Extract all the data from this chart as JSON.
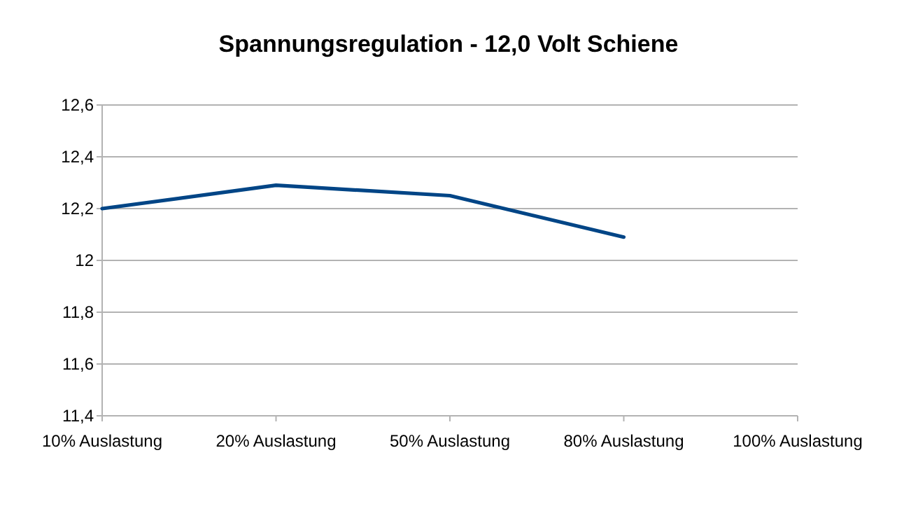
{
  "chart_data": {
    "type": "line",
    "title": "Spannungsregulation - 12,0 Volt Schiene",
    "categories": [
      "10% Auslastung",
      "20% Auslastung",
      "50% Auslastung",
      "80% Auslastung",
      "100% Auslastung"
    ],
    "series": [
      {
        "color": "#004586",
        "values": [
          12.2,
          12.29,
          12.25,
          12.09,
          null
        ]
      }
    ],
    "ylim": [
      11.4,
      12.6
    ],
    "yticks": [
      {
        "value": 11.4,
        "label": "11,4"
      },
      {
        "value": 11.6,
        "label": "11,6"
      },
      {
        "value": 11.8,
        "label": "11,8"
      },
      {
        "value": 12,
        "label": "12"
      },
      {
        "value": 12.2,
        "label": "12,2"
      },
      {
        "value": 12.4,
        "label": "12,4"
      },
      {
        "value": 12.6,
        "label": "12,6"
      }
    ],
    "grid": "y",
    "marker": "none",
    "line_style": "solid"
  }
}
